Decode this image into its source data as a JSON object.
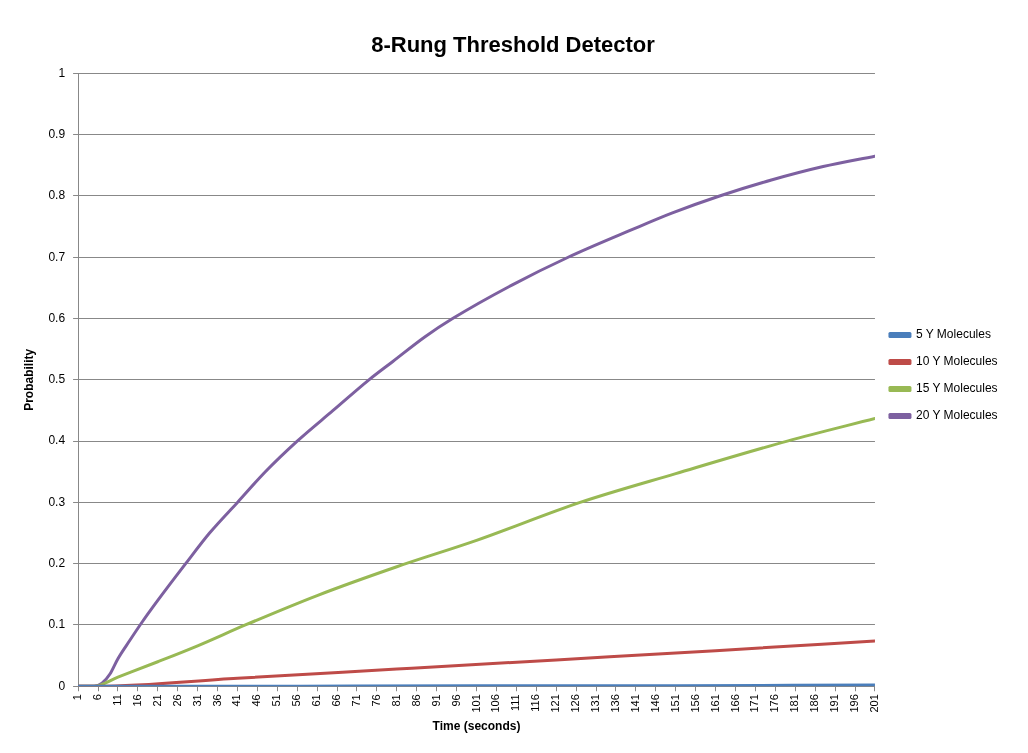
{
  "chart_data": {
    "type": "line",
    "title": "8-Rung Threshold Detector",
    "xlabel": "Time (seconds)",
    "ylabel": "Probability",
    "xlim": [
      1,
      201
    ],
    "xticks": [
      1,
      6,
      11,
      16,
      21,
      26,
      31,
      36,
      41,
      46,
      51,
      56,
      61,
      66,
      71,
      76,
      81,
      86,
      91,
      96,
      101,
      106,
      111,
      116,
      121,
      126,
      131,
      136,
      141,
      146,
      151,
      156,
      161,
      166,
      171,
      176,
      181,
      186,
      191,
      196,
      201
    ],
    "ylim": [
      0,
      1
    ],
    "yticks": [
      0,
      0.1,
      0.2,
      0.3,
      0.4,
      0.5,
      0.6,
      0.7,
      0.8,
      0.9,
      1
    ],
    "grid": "y",
    "legend": "right",
    "marker": "none",
    "line_style": "solid",
    "series": [
      {
        "name": "5 Y Molecules",
        "color": "#4a7ebb",
        "x": [
          1,
          51,
          101,
          151,
          201
        ],
        "values": [
          0,
          0,
          0.001,
          0.001,
          0.002
        ]
      },
      {
        "name": "10 Y Molecules",
        "color": "#be4b48",
        "x": [
          1,
          6,
          41,
          81,
          121,
          161,
          201
        ],
        "values": [
          0,
          0,
          0.013,
          0.028,
          0.043,
          0.058,
          0.074
        ]
      },
      {
        "name": "15 Y Molecules",
        "color": "#98b954",
        "x": [
          1,
          5,
          11,
          21,
          31,
          43,
          61,
          81,
          101,
          127,
          151,
          179,
          201
        ],
        "values": [
          0,
          0,
          0.015,
          0.04,
          0.066,
          0.1,
          0.148,
          0.195,
          0.238,
          0.3,
          0.347,
          0.4,
          0.437
        ]
      },
      {
        "name": "20 Y Molecules",
        "color": "#7d60a0",
        "x": [
          1,
          5,
          7,
          9,
          11,
          14,
          17,
          21,
          28,
          34,
          41,
          48,
          56,
          65,
          74,
          80,
          88,
          95,
          110,
          124,
          140,
          150,
          162,
          175,
          188,
          201
        ],
        "values": [
          0,
          0,
          0.005,
          0.02,
          0.045,
          0.075,
          0.104,
          0.14,
          0.2,
          0.25,
          0.3,
          0.35,
          0.4,
          0.45,
          0.5,
          0.53,
          0.57,
          0.6,
          0.655,
          0.7,
          0.745,
          0.772,
          0.8,
          0.826,
          0.848,
          0.865
        ]
      }
    ]
  }
}
